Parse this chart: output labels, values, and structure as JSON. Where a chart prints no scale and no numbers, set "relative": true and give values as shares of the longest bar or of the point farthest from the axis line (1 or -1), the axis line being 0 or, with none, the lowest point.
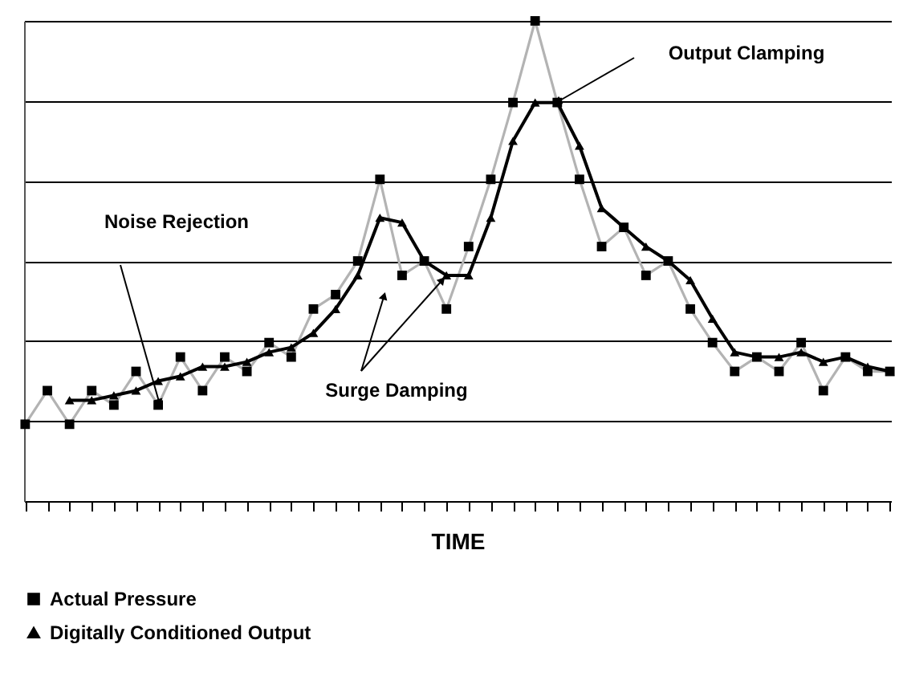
{
  "chart_data": {
    "type": "line",
    "relative": true,
    "xlabel": "TIME",
    "categories": [
      null,
      null,
      null,
      null,
      null,
      null,
      null,
      null,
      null,
      null,
      null,
      null,
      null,
      null,
      null,
      null,
      null,
      null,
      null,
      null,
      null,
      null,
      null,
      null,
      null,
      null,
      null,
      null,
      null,
      null,
      null,
      null,
      null,
      null,
      null,
      null,
      null,
      null,
      null,
      null
    ],
    "series": [
      {
        "name": "Actual Pressure",
        "color": "#b3b3b3",
        "marker": "square",
        "values": [
          0.16,
          0.23,
          0.16,
          0.23,
          0.2,
          0.27,
          0.2,
          0.3,
          0.23,
          0.3,
          0.27,
          0.33,
          0.3,
          0.4,
          0.43,
          0.5,
          0.67,
          0.47,
          0.5,
          0.4,
          0.53,
          0.67,
          0.83,
          1,
          0.83,
          0.67,
          0.53,
          0.57,
          0.47,
          0.5,
          0.4,
          0.33,
          0.27,
          0.3,
          0.27,
          0.33,
          0.23,
          0.3,
          0.27,
          0.27
        ]
      },
      {
        "name": "Digitally Conditioned Output",
        "color": "#000000",
        "marker": "triangle",
        "values": [
          null,
          null,
          0.21,
          0.21,
          0.22,
          0.23,
          0.25,
          0.26,
          0.28,
          0.28,
          0.29,
          0.31,
          0.32,
          0.35,
          0.4,
          0.47,
          0.59,
          0.58,
          0.5,
          0.47,
          0.47,
          0.59,
          0.75,
          0.83,
          0.83,
          0.74,
          0.61,
          0.57,
          0.53,
          0.5,
          0.46,
          0.38,
          0.31,
          0.3,
          0.3,
          0.31,
          0.29,
          0.3,
          0.28,
          0.27
        ]
      }
    ],
    "annotations": [
      "Noise Rejection",
      "Surge Damping",
      "Output Clamping"
    ],
    "grid": "y",
    "legend": "bottom"
  }
}
